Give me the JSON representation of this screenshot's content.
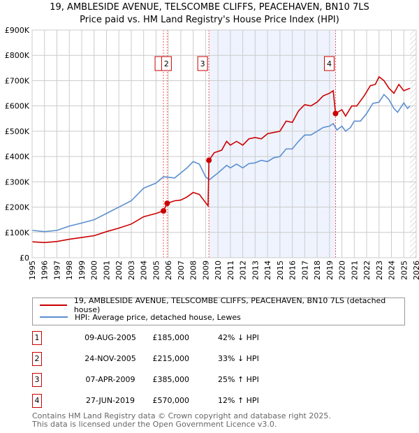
{
  "chart_data": {
    "type": "line",
    "title": "19, AMBLESIDE AVENUE, TELSCOMBE CLIFFS, PEACEHAVEN, BN10 7LS",
    "subtitle": "Price paid vs. HM Land Registry's House Price Index (HPI)",
    "xlim": [
      1995,
      2026
    ],
    "ylim": [
      0,
      900000
    ],
    "y_ticks": [
      {
        "v": 0,
        "label": "£0"
      },
      {
        "v": 100000,
        "label": "£100K"
      },
      {
        "v": 200000,
        "label": "£200K"
      },
      {
        "v": 300000,
        "label": "£300K"
      },
      {
        "v": 400000,
        "label": "£400K"
      },
      {
        "v": 500000,
        "label": "£500K"
      },
      {
        "v": 600000,
        "label": "£600K"
      },
      {
        "v": 700000,
        "label": "£700K"
      },
      {
        "v": 800000,
        "label": "£800K"
      },
      {
        "v": 900000,
        "label": "£900K"
      }
    ],
    "x_ticks": [
      "1995",
      "1996",
      "1997",
      "1998",
      "1999",
      "2000",
      "2001",
      "2002",
      "2003",
      "2004",
      "2005",
      "2006",
      "2007",
      "2008",
      "2009",
      "2010",
      "2011",
      "2012",
      "2013",
      "2014",
      "2015",
      "2016",
      "2017",
      "2018",
      "2019",
      "2020",
      "2021",
      "2022",
      "2023",
      "2024",
      "2025",
      "2026"
    ],
    "grid": true,
    "shaded_range": [
      2009.27,
      2019.49
    ],
    "hatched_from": 2025.5,
    "series": [
      {
        "name": "19, AMBLESIDE AVENUE, TELSCOMBE CLIFFS, PEACEHAVEN, BN10 7LS (detached house)",
        "color": "#cc0000",
        "x": [
          1995,
          1996,
          1997,
          1998,
          1999,
          2000,
          2001,
          2002,
          2003,
          2004,
          2005,
          2005.6,
          2005.9,
          2006.5,
          2007,
          2007.5,
          2008,
          2008.5,
          2009.2,
          2009.27,
          2009.7,
          2010.3,
          2010.7,
          2011,
          2011.5,
          2012,
          2012.5,
          2013,
          2013.5,
          2014,
          2014.5,
          2015,
          2015.5,
          2016,
          2016.5,
          2017,
          2017.5,
          2018,
          2018.5,
          2019,
          2019.3,
          2019.49,
          2020,
          2020.3,
          2020.8,
          2021.2,
          2021.8,
          2022.3,
          2022.7,
          2023,
          2023.4,
          2023.8,
          2024.2,
          2024.6,
          2025,
          2025.5
        ],
        "y": [
          63000,
          60000,
          64000,
          73000,
          80000,
          87000,
          103000,
          117000,
          133000,
          162000,
          175000,
          185000,
          215000,
          225000,
          228000,
          240000,
          258000,
          250000,
          205000,
          385000,
          415000,
          425000,
          460000,
          445000,
          460000,
          445000,
          470000,
          475000,
          470000,
          490000,
          495000,
          500000,
          540000,
          535000,
          580000,
          605000,
          600000,
          615000,
          640000,
          650000,
          660000,
          570000,
          585000,
          560000,
          600000,
          600000,
          640000,
          680000,
          685000,
          715000,
          700000,
          670000,
          650000,
          685000,
          660000,
          670000
        ]
      },
      {
        "name": "HPI: Average price, detached house, Lewes",
        "color": "#5b8fd0",
        "x": [
          1995,
          1996,
          1997,
          1998,
          1999,
          2000,
          2001,
          2002,
          2003,
          2004,
          2005,
          2005.6,
          2006,
          2006.5,
          2007,
          2007.5,
          2008,
          2008.5,
          2009,
          2009.3,
          2010,
          2010.7,
          2011,
          2011.5,
          2012,
          2012.5,
          2013,
          2013.5,
          2014,
          2014.5,
          2015,
          2015.5,
          2016,
          2016.5,
          2017,
          2017.5,
          2018,
          2018.5,
          2019,
          2019.3,
          2019.6,
          2020,
          2020.3,
          2020.7,
          2021,
          2021.5,
          2022,
          2022.5,
          2023,
          2023.4,
          2023.8,
          2024.2,
          2024.5,
          2025,
          2025.3,
          2025.5
        ],
        "y": [
          108000,
          103000,
          108000,
          125000,
          137000,
          150000,
          175000,
          200000,
          225000,
          275000,
          295000,
          320000,
          318000,
          315000,
          335000,
          355000,
          380000,
          370000,
          320000,
          308000,
          335000,
          365000,
          355000,
          370000,
          355000,
          372000,
          375000,
          385000,
          380000,
          395000,
          400000,
          430000,
          430000,
          460000,
          485000,
          485000,
          500000,
          515000,
          520000,
          530000,
          505000,
          520000,
          500000,
          515000,
          540000,
          540000,
          570000,
          610000,
          615000,
          645000,
          625000,
          590000,
          575000,
          612000,
          590000,
          600000
        ]
      }
    ],
    "sales": [
      {
        "n": "1",
        "x": 2005.6,
        "y": 185000
      },
      {
        "n": "2",
        "x": 2005.9,
        "y": 215000
      },
      {
        "n": "3",
        "x": 2009.27,
        "y": 385000
      },
      {
        "n": "4",
        "x": 2019.49,
        "y": 570000
      }
    ]
  },
  "legend": {
    "red": "19, AMBLESIDE AVENUE, TELSCOMBE CLIFFS, PEACEHAVEN, BN10 7LS (detached house)",
    "blue": "HPI: Average price, detached house, Lewes"
  },
  "table": [
    {
      "n": "1",
      "date": "09-AUG-2005",
      "price": "£185,000",
      "hpi": "42% ↓ HPI"
    },
    {
      "n": "2",
      "date": "24-NOV-2005",
      "price": "£215,000",
      "hpi": "33% ↓ HPI"
    },
    {
      "n": "3",
      "date": "07-APR-2009",
      "price": "£385,000",
      "hpi": "25% ↑ HPI"
    },
    {
      "n": "4",
      "date": "27-JUN-2019",
      "price": "£570,000",
      "hpi": "12% ↑ HPI"
    }
  ],
  "footer": {
    "line1": "Contains HM Land Registry data © Crown copyright and database right 2025.",
    "line2": "This data is licensed under the Open Government Licence v3.0."
  }
}
